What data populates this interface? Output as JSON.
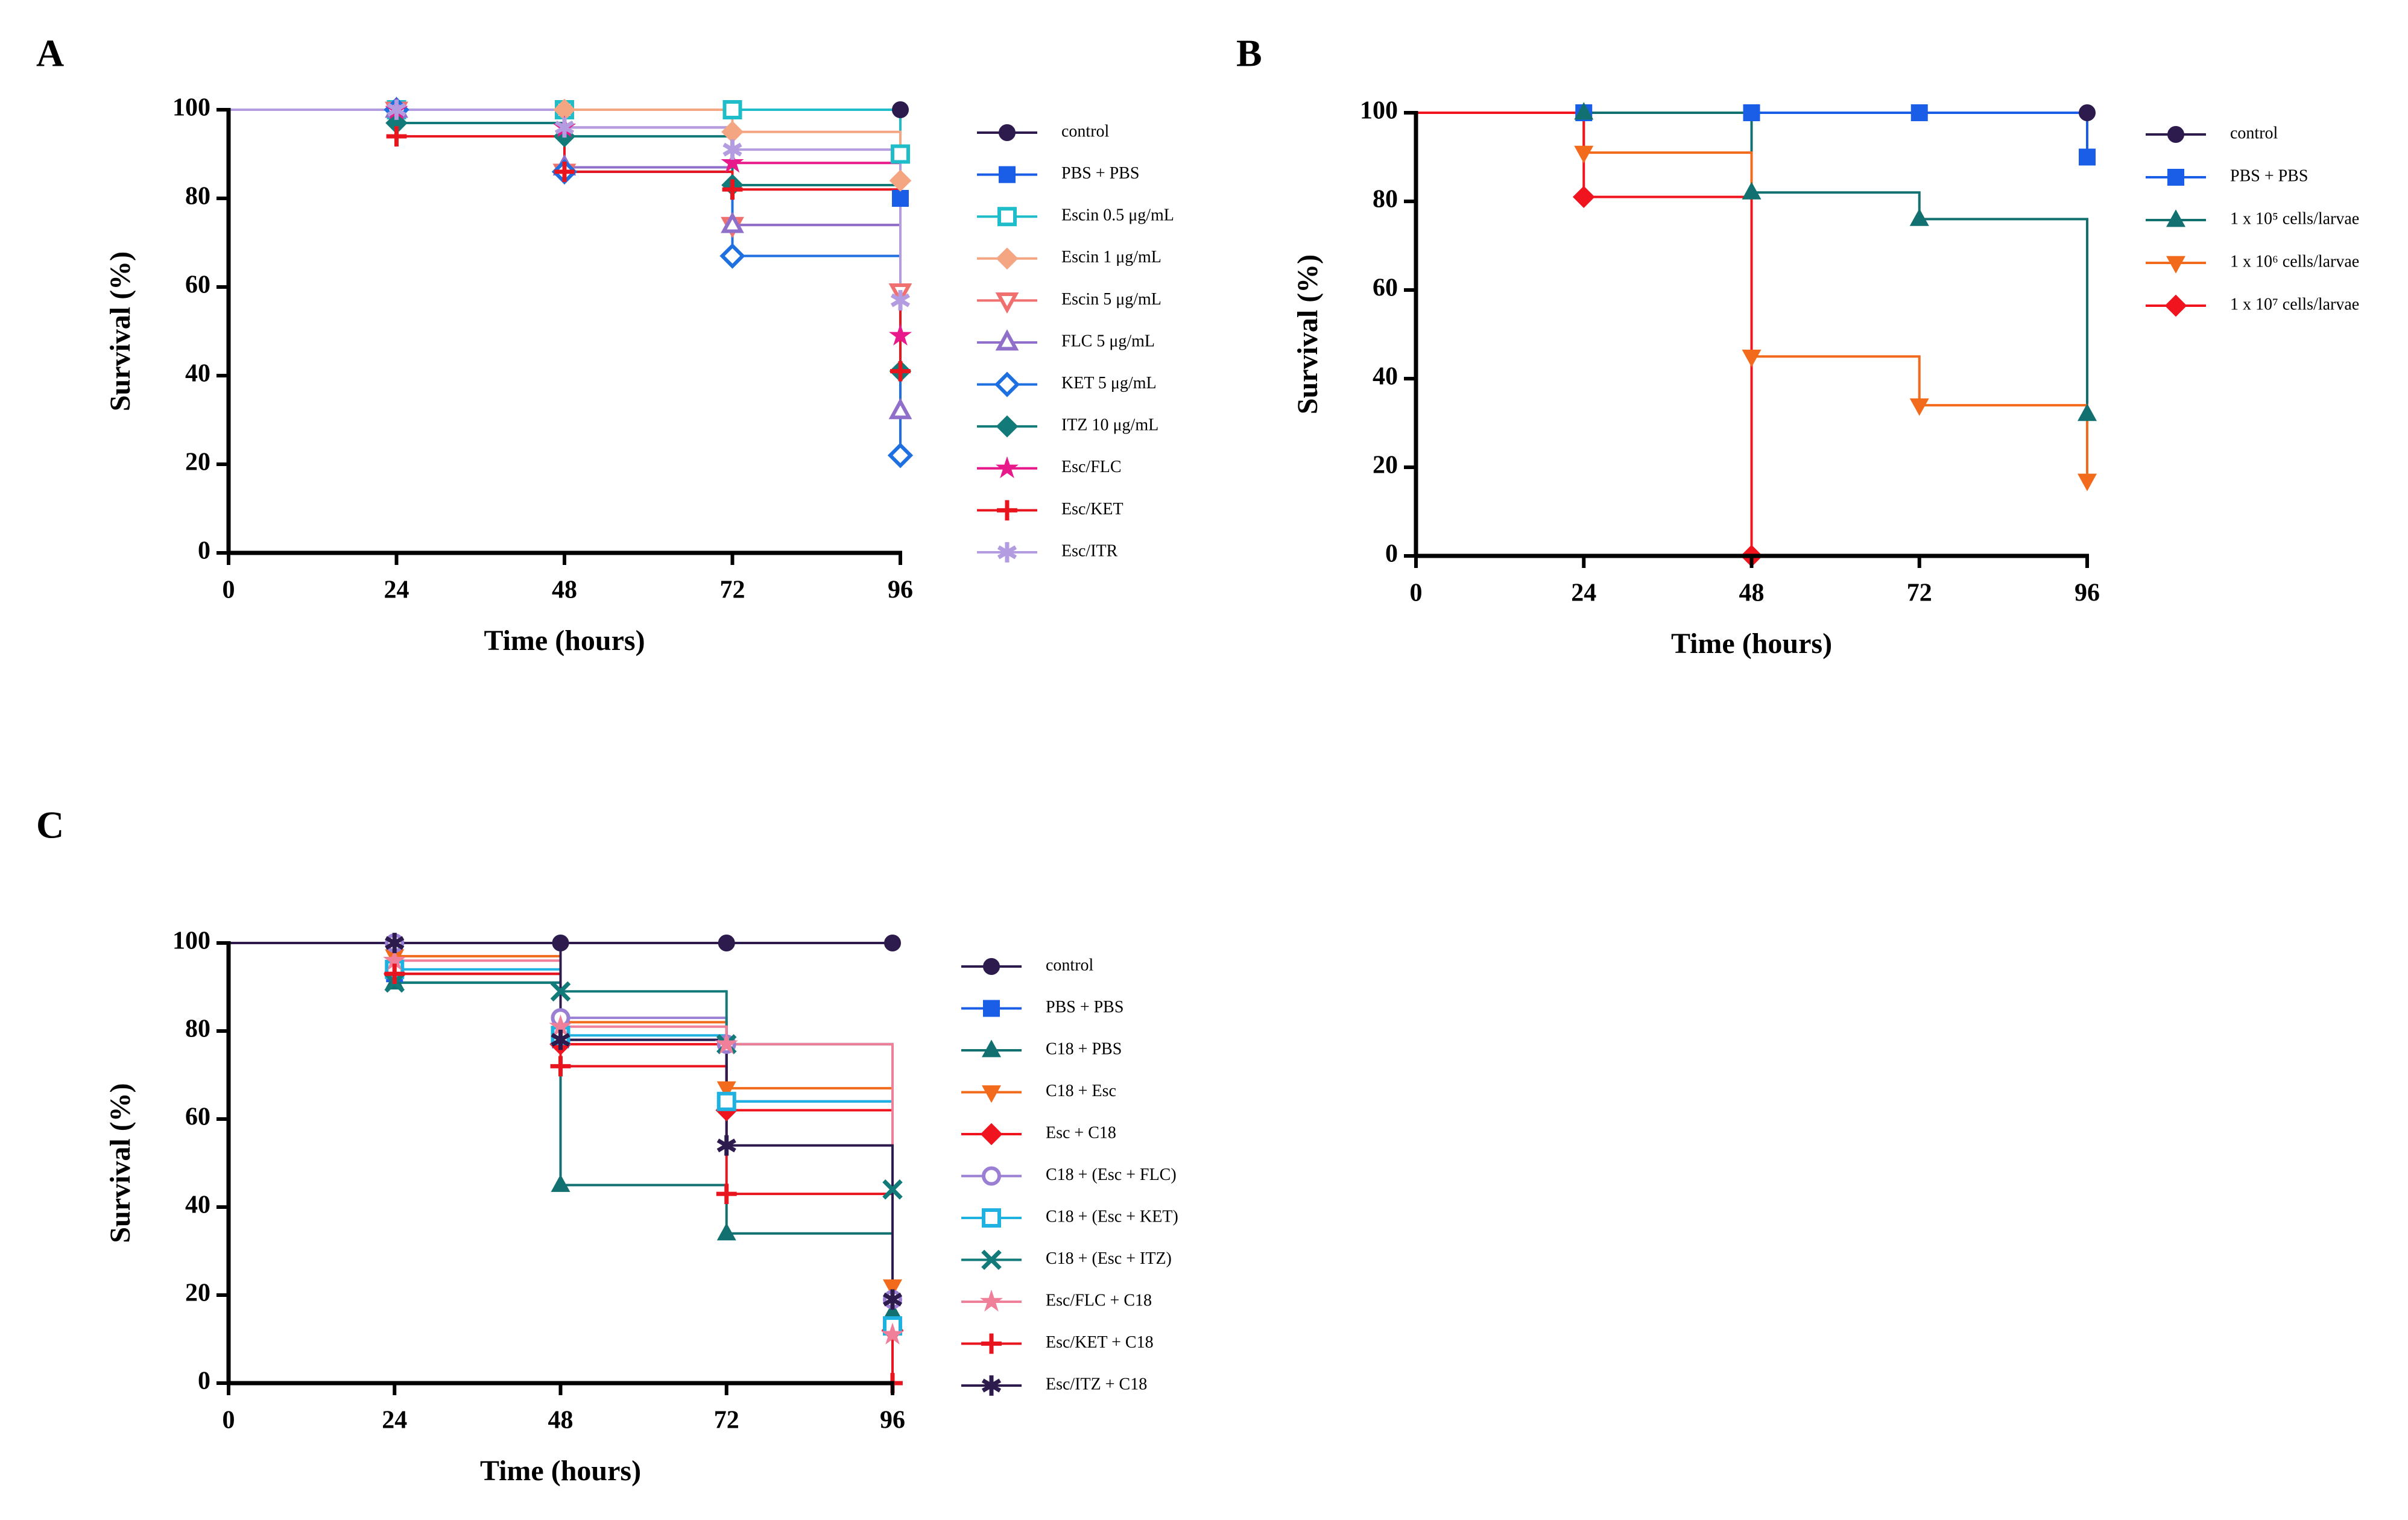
{
  "chart_data": [
    {
      "type": "step",
      "panel": "A",
      "x_label": "Time (hours)",
      "y_label": "Survival (%)",
      "x": [
        0,
        24,
        48,
        72,
        96
      ],
      "xlim": [
        0,
        96
      ],
      "ylim": [
        0,
        100
      ],
      "xticks": [
        0,
        24,
        48,
        72,
        96
      ],
      "yticks": [
        0,
        20,
        40,
        60,
        80,
        100
      ],
      "series": [
        {
          "name": "control",
          "color": "#2d1b4e",
          "marker": "circle",
          "values": [
            100,
            100,
            100,
            100,
            100
          ]
        },
        {
          "name": "PBS + PBS",
          "color": "#1a5ee8",
          "marker": "square",
          "values": [
            100,
            100,
            100,
            100,
            80
          ]
        },
        {
          "name": "Escin 0.5 μg/mL",
          "color": "#1fbcc9",
          "marker": "square-open",
          "values": [
            100,
            100,
            100,
            100,
            90
          ]
        },
        {
          "name": "Escin 1 μg/mL",
          "color": "#f4a582",
          "marker": "diamond",
          "values": [
            100,
            100,
            100,
            95,
            84
          ]
        },
        {
          "name": "Escin 5 μg/mL",
          "color": "#f07070",
          "marker": "triangle-down-open",
          "values": [
            100,
            100,
            86,
            74,
            59
          ]
        },
        {
          "name": "FLC 5 μg/mL",
          "color": "#8f6fc9",
          "marker": "triangle-open",
          "values": [
            100,
            100,
            87,
            74,
            32
          ]
        },
        {
          "name": "KET 5 μg/mL",
          "color": "#1e6fe0",
          "marker": "diamond-open",
          "values": [
            100,
            100,
            86,
            67,
            22
          ]
        },
        {
          "name": "ITZ 10 μg/mL",
          "color": "#137a7a",
          "marker": "diamond",
          "values": [
            100,
            97,
            94,
            83,
            41
          ]
        },
        {
          "name": "Esc/FLC",
          "color": "#e8198a",
          "marker": "star",
          "values": [
            100,
            100,
            96,
            88,
            49
          ]
        },
        {
          "name": "Esc/KET",
          "color": "#e8141e",
          "marker": "plus",
          "values": [
            100,
            94,
            86,
            82,
            41
          ]
        },
        {
          "name": "Esc/ITR",
          "color": "#b39ce0",
          "marker": "asterisk",
          "values": [
            100,
            100,
            96,
            91,
            57
          ]
        }
      ]
    },
    {
      "type": "step",
      "panel": "B",
      "x_label": "Time (hours)",
      "y_label": "Survival (%)",
      "x": [
        0,
        24,
        48,
        72,
        96
      ],
      "xlim": [
        0,
        96
      ],
      "ylim": [
        0,
        100
      ],
      "xticks": [
        0,
        24,
        48,
        72,
        96
      ],
      "yticks": [
        0,
        20,
        40,
        60,
        80,
        100
      ],
      "series": [
        {
          "name": "control",
          "color": "#2d1b4e",
          "marker": "circle",
          "values": [
            100,
            100,
            100,
            100,
            100
          ]
        },
        {
          "name": "PBS + PBS",
          "color": "#1a5ee8",
          "marker": "square",
          "values": [
            100,
            100,
            100,
            100,
            90
          ]
        },
        {
          "name": "1 x 10⁵ cells/larvae",
          "color": "#137070",
          "marker": "triangle",
          "values": [
            100,
            100,
            82,
            76,
            32
          ]
        },
        {
          "name": "1 x 10⁶ cells/larvae",
          "color": "#f26a1b",
          "marker": "triangle-down",
          "values": [
            100,
            91,
            45,
            34,
            17
          ]
        },
        {
          "name": "1 x 10⁷ cells/larvae",
          "color": "#f0141e",
          "marker": "diamond",
          "values": [
            100,
            81,
            0,
            null,
            null
          ]
        }
      ]
    },
    {
      "type": "step",
      "panel": "C",
      "x_label": "Time (hours)",
      "y_label": "Survival (%)",
      "x": [
        0,
        24,
        48,
        72,
        96
      ],
      "xlim": [
        0,
        96
      ],
      "ylim": [
        0,
        100
      ],
      "xticks": [
        0,
        24,
        48,
        72,
        96
      ],
      "yticks": [
        0,
        20,
        40,
        60,
        80,
        100
      ],
      "series": [
        {
          "name": "control",
          "color": "#2d1b4e",
          "marker": "circle",
          "values": [
            100,
            100,
            100,
            100,
            100
          ]
        },
        {
          "name": "PBS + PBS",
          "color": "#1a5ee8",
          "marker": "square",
          "values": [
            100,
            93,
            78,
            64,
            13
          ]
        },
        {
          "name": "C18 + PBS",
          "color": "#137070",
          "marker": "triangle",
          "values": [
            100,
            91,
            45,
            34,
            16
          ]
        },
        {
          "name": "C18 + Esc",
          "color": "#f26a1b",
          "marker": "triangle-down",
          "values": [
            100,
            97,
            82,
            67,
            22
          ]
        },
        {
          "name": "Esc + C18",
          "color": "#f0141e",
          "marker": "diamond",
          "values": [
            100,
            93,
            77,
            62,
            12
          ]
        },
        {
          "name": "C18 + (Esc + FLC)",
          "color": "#9b7fd4",
          "marker": "circle-open",
          "values": [
            100,
            100,
            83,
            77,
            19
          ]
        },
        {
          "name": "C18 + (Esc + KET)",
          "color": "#1fb2e0",
          "marker": "square-open",
          "values": [
            100,
            94,
            79,
            64,
            13
          ]
        },
        {
          "name": "C18 + (Esc + ITZ)",
          "color": "#137a7a",
          "marker": "x",
          "values": [
            100,
            91,
            89,
            77,
            44
          ]
        },
        {
          "name": "Esc/FLC + C18",
          "color": "#f07f9a",
          "marker": "star",
          "values": [
            100,
            96,
            81,
            77,
            11
          ]
        },
        {
          "name": "Esc/KET + C18",
          "color": "#e8141e",
          "marker": "plus",
          "values": [
            100,
            93,
            72,
            43,
            0
          ]
        },
        {
          "name": "Esc/ITZ + C18",
          "color": "#2d1b4e",
          "marker": "asterisk",
          "values": [
            100,
            100,
            78,
            54,
            19
          ]
        }
      ]
    }
  ]
}
